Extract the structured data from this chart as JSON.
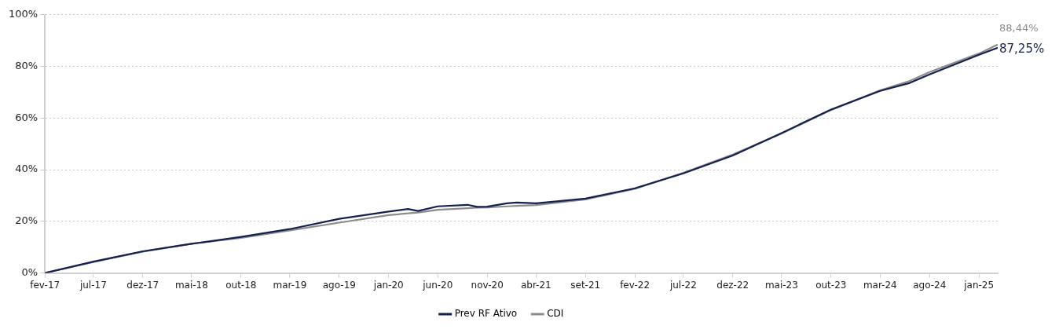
{
  "chart_data": {
    "type": "line",
    "x": [
      "2017-02-01",
      "2017-07-01",
      "2017-12-01",
      "2018-05-01",
      "2018-10-01",
      "2019-03-01",
      "2019-08-01",
      "2020-01-01",
      "2020-03-01",
      "2020-04-01",
      "2020-06-01",
      "2020-09-01",
      "2020-10-01",
      "2020-11-01",
      "2021-01-01",
      "2021-02-01",
      "2021-04-01",
      "2021-09-01",
      "2022-02-01",
      "2022-07-01",
      "2022-12-01",
      "2023-05-01",
      "2023-10-01",
      "2024-03-01",
      "2024-06-01",
      "2024-08-01",
      "2025-01-01",
      "2025-02-28"
    ],
    "series": [
      {
        "name": "Prev RF Ativo",
        "color": "#14214f",
        "values": [
          0,
          4.4,
          8.4,
          11.3,
          14.0,
          17.0,
          21.0,
          23.8,
          24.8,
          24.0,
          25.8,
          26.4,
          25.6,
          25.7,
          27.0,
          27.3,
          27.0,
          28.8,
          32.8,
          38.6,
          45.5,
          54.2,
          63.3,
          70.5,
          73.6,
          76.9,
          84.5,
          87.25
        ],
        "value_labels": [
          null,
          null,
          null,
          null,
          null,
          null,
          null,
          null,
          null,
          null,
          null,
          null,
          null,
          null,
          null,
          null,
          null,
          null,
          null,
          null,
          null,
          null,
          null,
          null,
          null,
          null,
          null,
          "87,25%"
        ]
      },
      {
        "name": "CDI",
        "color": "#8c8c8c",
        "values": [
          0,
          4.2,
          8.3,
          11.3,
          13.6,
          16.5,
          19.5,
          22.4,
          23.1,
          23.4,
          24.5,
          25.1,
          25.3,
          25.4,
          25.8,
          26.0,
          26.3,
          28.5,
          32.6,
          38.8,
          45.9,
          54,
          63.1,
          70.7,
          74.4,
          77.8,
          85,
          88.44
        ],
        "value_labels": [
          null,
          null,
          null,
          null,
          null,
          null,
          null,
          null,
          null,
          null,
          null,
          null,
          null,
          null,
          null,
          null,
          null,
          null,
          null,
          null,
          null,
          null,
          null,
          null,
          null,
          null,
          null,
          "88,44%"
        ]
      }
    ],
    "xlim": [
      "2017-02-01",
      "2025-02-28"
    ],
    "xticks": [
      {
        "value": "2017-02-01",
        "label": "fev-17"
      },
      {
        "value": "2017-07-01",
        "label": "jul-17"
      },
      {
        "value": "2017-12-01",
        "label": "dez-17"
      },
      {
        "value": "2018-05-01",
        "label": "mai-18"
      },
      {
        "value": "2018-10-01",
        "label": "out-18"
      },
      {
        "value": "2019-03-01",
        "label": "mar-19"
      },
      {
        "value": "2019-08-01",
        "label": "ago-19"
      },
      {
        "value": "2020-01-01",
        "label": "jan-20"
      },
      {
        "value": "2020-06-01",
        "label": "jun-20"
      },
      {
        "value": "2020-11-01",
        "label": "nov-20"
      },
      {
        "value": "2021-04-01",
        "label": "abr-21"
      },
      {
        "value": "2021-09-01",
        "label": "set-21"
      },
      {
        "value": "2022-02-01",
        "label": "fev-22"
      },
      {
        "value": "2022-07-01",
        "label": "jul-22"
      },
      {
        "value": "2022-12-01",
        "label": "dez-22"
      },
      {
        "value": "2023-05-01",
        "label": "mai-23"
      },
      {
        "value": "2023-10-01",
        "label": "out-23"
      },
      {
        "value": "2024-03-01",
        "label": "mar-24"
      },
      {
        "value": "2024-08-01",
        "label": "ago-24"
      },
      {
        "value": "2025-01-01",
        "label": "jan-25"
      }
    ],
    "ylim": [
      0,
      100
    ],
    "yticks": [
      {
        "value": 0,
        "label": "0%"
      },
      {
        "value": 20,
        "label": "20%"
      },
      {
        "value": 40,
        "label": "40%"
      },
      {
        "value": 60,
        "label": "60%"
      },
      {
        "value": 80,
        "label": "80%"
      },
      {
        "value": 100,
        "label": "100%"
      }
    ],
    "grid": "y",
    "legend": "bottom",
    "marker": "none",
    "line_style": "solid"
  }
}
